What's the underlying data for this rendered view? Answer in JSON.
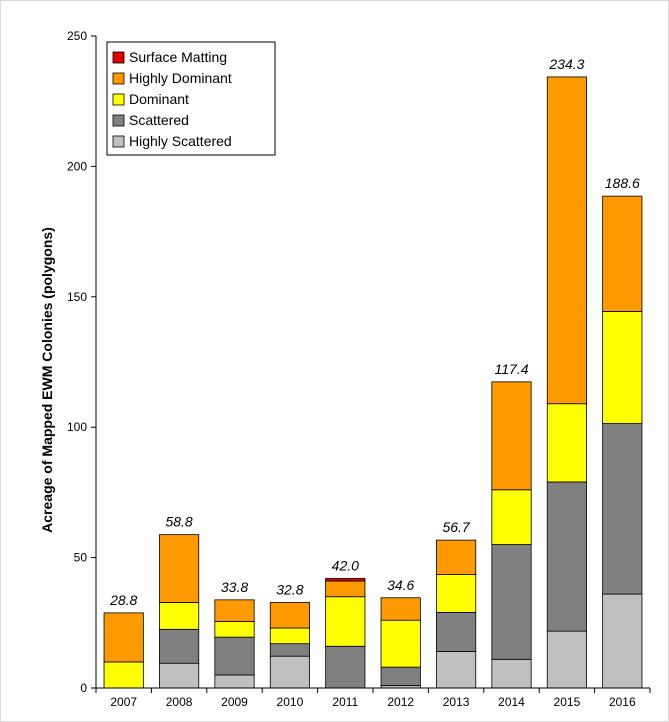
{
  "chart_data": {
    "type": "bar",
    "stacked": true,
    "ylabel": "Acreage of Mapped EWM Colonies (polygons)",
    "xlabel": "",
    "ylim": [
      0,
      250
    ],
    "yticks": [
      0,
      50,
      100,
      150,
      200,
      250
    ],
    "grid": false,
    "legend_position": "top-left",
    "categories": [
      "2007",
      "2008",
      "2009",
      "2010",
      "2011",
      "2012",
      "2013",
      "2014",
      "2015",
      "2016"
    ],
    "totals": [
      "28.8",
      "58.8",
      "33.8",
      "32.8",
      "42.0",
      "34.6",
      "56.7",
      "117.4",
      "234.3",
      "188.6"
    ],
    "series": [
      {
        "name": "Highly Scattered",
        "color": "#c0c0c0",
        "values": [
          0,
          9.5,
          5,
          12.2,
          0,
          1,
          14,
          11,
          21.8,
          36
        ]
      },
      {
        "name": "Scattered",
        "color": "#808080",
        "values": [
          0,
          13,
          14.5,
          4.8,
          16,
          7,
          15,
          44,
          57.2,
          65.4
        ]
      },
      {
        "name": "Dominant",
        "color": "#ffff00",
        "values": [
          10,
          10.3,
          6,
          6,
          19,
          18,
          14.5,
          21,
          30,
          43
        ]
      },
      {
        "name": "Highly Dominant",
        "color": "#ff9900",
        "values": [
          18.8,
          26,
          8.3,
          9.8,
          6,
          8.6,
          13.2,
          41.4,
          125.3,
          44.2
        ]
      },
      {
        "name": "Surface Matting",
        "color": "#e00000",
        "values": [
          0,
          0,
          0,
          0,
          1,
          0,
          0,
          0,
          0,
          0
        ]
      }
    ]
  }
}
